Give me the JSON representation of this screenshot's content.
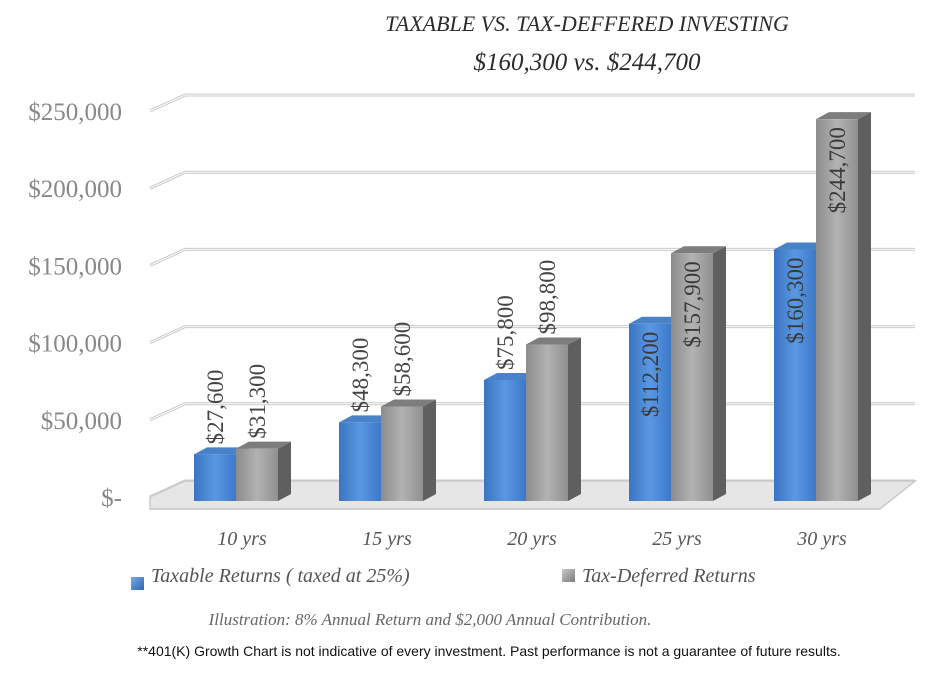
{
  "chart_data": {
    "type": "bar",
    "title": "TAXABLE VS. TAX-DEFFERED INVESTING",
    "subtitle": "$160,300 vs. $244,700",
    "categories": [
      "10 yrs",
      "15 yrs",
      "20 yrs",
      "25 yrs",
      "30 yrs"
    ],
    "series": [
      {
        "name": "Taxable Returns ( taxed at 25%)",
        "values": [
          27600,
          48300,
          75800,
          112200,
          160300
        ],
        "labels": [
          "$27,600",
          "$48,300",
          "$75,800",
          "$112,200",
          "$160,300"
        ],
        "color": "#3E7FD0"
      },
      {
        "name": "Tax-Deferred Returns",
        "values": [
          31300,
          58600,
          98800,
          157900,
          244700
        ],
        "labels": [
          "$31,300",
          "$58,600",
          "$98,800",
          "$157,900",
          "$244,700"
        ],
        "color": "#9A9A9A"
      }
    ],
    "ylim": [
      0,
      250000
    ],
    "yticks": [
      {
        "value": 0,
        "label": "$-"
      },
      {
        "value": 50000,
        "label": "$50,000"
      },
      {
        "value": 100000,
        "label": "$100,000"
      },
      {
        "value": 150000,
        "label": "$150,000"
      },
      {
        "value": 200000,
        "label": "$200,000"
      },
      {
        "value": 250000,
        "label": "$250,000"
      }
    ],
    "grid": true,
    "legend": "bottom",
    "style": "3d-clustered-column"
  },
  "caption": "Illustration: 8% Annual Return and $2,000 Annual Contribution.",
  "disclaimer": "**401(K) Growth Chart is not indicative of every investment. Past performance is not a guarantee of future results."
}
